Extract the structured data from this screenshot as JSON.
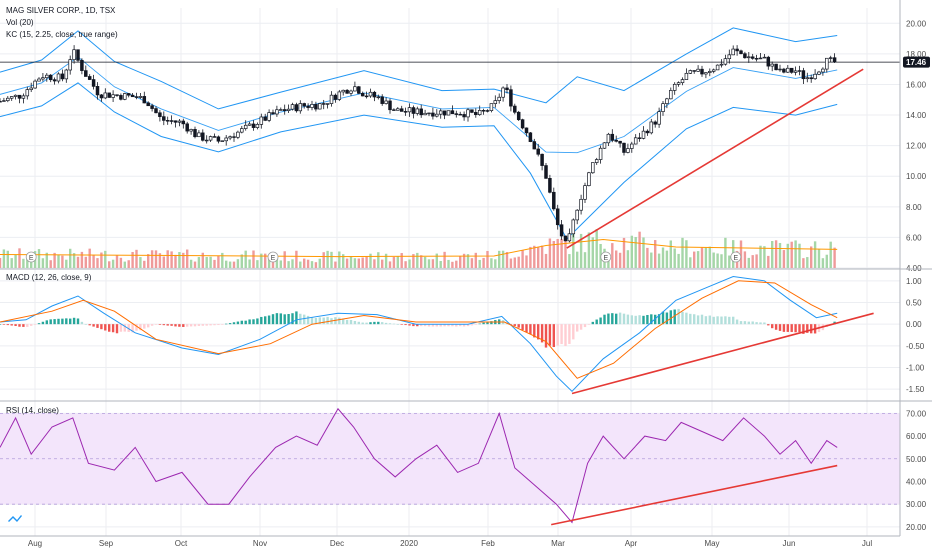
{
  "legend": {
    "symbol": "MAG SILVER CORP., 1D, TSX",
    "volume": "Vol (20)",
    "keltner": "KC (15, 2.25, close, true range)",
    "macd": "MACD (12, 26, close, 9)",
    "rsi": "RSI (14, close)"
  },
  "price_badge": "17.46",
  "earnings_marker": "E",
  "colors": {
    "up": "#26a69a",
    "down": "#ef5350",
    "candle": "#131722",
    "keltner": "#2196f3",
    "vol_up": "#a5d6a7",
    "vol_down": "#ef9a9a",
    "vol_ma": "#ff9800",
    "macd_line": "#2196f3",
    "signal_line": "#ff6d00",
    "rsi_line": "#9c27b0",
    "rsi_band": "#f3e5fb",
    "trend": "#e53935",
    "badge": "#131722"
  },
  "chart_data": [
    {
      "type": "candlestick",
      "title": "MAG SILVER CORP., 1D, TSX",
      "x_ticks": [
        "Aug",
        "Sep",
        "Oct",
        "Nov",
        "Dec",
        "2020",
        "Feb",
        "Mar",
        "Apr",
        "May",
        "Jun",
        "Jul"
      ],
      "y_ticks": [
        "20.00",
        "18.00",
        "16.00",
        "14.00",
        "12.00",
        "10.00",
        "8.00",
        "6.00",
        "4.00"
      ],
      "ylim": [
        4,
        21
      ],
      "last_price": 17.46,
      "close_series": [
        {
          "d": 0,
          "v": 14.9
        },
        {
          "d": 8,
          "v": 15.3
        },
        {
          "d": 16,
          "v": 16.6
        },
        {
          "d": 24,
          "v": 16.4
        },
        {
          "d": 28,
          "v": 18.2
        },
        {
          "d": 32,
          "v": 16.9
        },
        {
          "d": 38,
          "v": 15.4
        },
        {
          "d": 44,
          "v": 15.3
        },
        {
          "d": 52,
          "v": 15.2
        },
        {
          "d": 56,
          "v": 15.0
        },
        {
          "d": 62,
          "v": 13.7
        },
        {
          "d": 70,
          "v": 13.5
        },
        {
          "d": 76,
          "v": 12.6
        },
        {
          "d": 84,
          "v": 12.3
        },
        {
          "d": 92,
          "v": 12.9
        },
        {
          "d": 100,
          "v": 13.6
        },
        {
          "d": 108,
          "v": 14.3
        },
        {
          "d": 116,
          "v": 14.6
        },
        {
          "d": 124,
          "v": 14.7
        },
        {
          "d": 130,
          "v": 15.4
        },
        {
          "d": 136,
          "v": 15.9
        },
        {
          "d": 140,
          "v": 15.4
        },
        {
          "d": 146,
          "v": 15.1
        },
        {
          "d": 152,
          "v": 14.3
        },
        {
          "d": 160,
          "v": 14.2
        },
        {
          "d": 168,
          "v": 14.2
        },
        {
          "d": 176,
          "v": 14.2
        },
        {
          "d": 184,
          "v": 14.0
        },
        {
          "d": 190,
          "v": 14.6
        },
        {
          "d": 194,
          "v": 15.9
        },
        {
          "d": 198,
          "v": 14.2
        },
        {
          "d": 204,
          "v": 12.5
        },
        {
          "d": 210,
          "v": 10.0
        },
        {
          "d": 214,
          "v": 7.0
        },
        {
          "d": 218,
          "v": 5.3
        },
        {
          "d": 222,
          "v": 8.0
        },
        {
          "d": 228,
          "v": 10.8
        },
        {
          "d": 234,
          "v": 12.8
        },
        {
          "d": 240,
          "v": 11.6
        },
        {
          "d": 246,
          "v": 12.6
        },
        {
          "d": 252,
          "v": 13.6
        },
        {
          "d": 258,
          "v": 15.5
        },
        {
          "d": 264,
          "v": 16.6
        },
        {
          "d": 270,
          "v": 16.8
        },
        {
          "d": 276,
          "v": 17.2
        },
        {
          "d": 282,
          "v": 18.2
        },
        {
          "d": 288,
          "v": 17.8
        },
        {
          "d": 294,
          "v": 17.6
        },
        {
          "d": 300,
          "v": 16.8
        },
        {
          "d": 306,
          "v": 16.9
        },
        {
          "d": 310,
          "v": 16.4
        },
        {
          "d": 314,
          "v": 16.9
        },
        {
          "d": 318,
          "v": 17.5
        },
        {
          "d": 322,
          "v": 17.46
        }
      ],
      "keltner_upper": [
        {
          "d": 0,
          "v": 16.8
        },
        {
          "d": 16,
          "v": 17.6
        },
        {
          "d": 30,
          "v": 19.5
        },
        {
          "d": 44,
          "v": 17.5
        },
        {
          "d": 62,
          "v": 16.2
        },
        {
          "d": 84,
          "v": 14.4
        },
        {
          "d": 108,
          "v": 15.5
        },
        {
          "d": 140,
          "v": 16.9
        },
        {
          "d": 170,
          "v": 15.6
        },
        {
          "d": 190,
          "v": 15.7
        },
        {
          "d": 210,
          "v": 14.8
        },
        {
          "d": 222,
          "v": 16.5
        },
        {
          "d": 240,
          "v": 15.6
        },
        {
          "d": 264,
          "v": 18.0
        },
        {
          "d": 282,
          "v": 19.7
        },
        {
          "d": 306,
          "v": 18.8
        },
        {
          "d": 322,
          "v": 19.2
        }
      ],
      "keltner_lower": [
        {
          "d": 0,
          "v": 13.9
        },
        {
          "d": 16,
          "v": 14.6
        },
        {
          "d": 30,
          "v": 16.1
        },
        {
          "d": 44,
          "v": 14.2
        },
        {
          "d": 62,
          "v": 12.6
        },
        {
          "d": 84,
          "v": 11.6
        },
        {
          "d": 108,
          "v": 12.9
        },
        {
          "d": 140,
          "v": 14.0
        },
        {
          "d": 170,
          "v": 13.2
        },
        {
          "d": 190,
          "v": 13.3
        },
        {
          "d": 204,
          "v": 10.2
        },
        {
          "d": 218,
          "v": 5.9
        },
        {
          "d": 240,
          "v": 9.6
        },
        {
          "d": 264,
          "v": 13.1
        },
        {
          "d": 282,
          "v": 14.5
        },
        {
          "d": 306,
          "v": 14.0
        },
        {
          "d": 322,
          "v": 14.7
        }
      ],
      "trendline": {
        "from": {
          "d": 218,
          "v": 5.3
        },
        "to": {
          "d": 332,
          "v": 17.0
        }
      },
      "earnings_days": [
        12,
        105,
        233,
        283
      ]
    },
    {
      "type": "bar",
      "title": "Vol (20)",
      "volume_ma": [
        {
          "d": 0,
          "v": 0.45
        },
        {
          "d": 60,
          "v": 0.42
        },
        {
          "d": 130,
          "v": 0.38
        },
        {
          "d": 190,
          "v": 0.4
        },
        {
          "d": 210,
          "v": 0.75
        },
        {
          "d": 232,
          "v": 0.95
        },
        {
          "d": 260,
          "v": 0.7
        },
        {
          "d": 322,
          "v": 0.62
        }
      ]
    },
    {
      "type": "line",
      "title": "MACD (12, 26, close, 9)",
      "y_ticks": [
        "1.00",
        "0.50",
        "0.00",
        "-0.50",
        "-1.00",
        "-1.50"
      ],
      "ylim": [
        -1.75,
        1.25
      ],
      "macd_line": [
        {
          "d": 0,
          "v": 0.05
        },
        {
          "d": 10,
          "v": 0.1
        },
        {
          "d": 20,
          "v": 0.42
        },
        {
          "d": 30,
          "v": 0.65
        },
        {
          "d": 40,
          "v": 0.25
        },
        {
          "d": 52,
          "v": -0.2
        },
        {
          "d": 70,
          "v": -0.55
        },
        {
          "d": 84,
          "v": -0.7
        },
        {
          "d": 100,
          "v": -0.35
        },
        {
          "d": 114,
          "v": 0.1
        },
        {
          "d": 130,
          "v": 0.25
        },
        {
          "d": 145,
          "v": 0.22
        },
        {
          "d": 160,
          "v": 0.0
        },
        {
          "d": 180,
          "v": 0.0
        },
        {
          "d": 193,
          "v": 0.18
        },
        {
          "d": 204,
          "v": -0.45
        },
        {
          "d": 214,
          "v": -1.2
        },
        {
          "d": 220,
          "v": -1.55
        },
        {
          "d": 232,
          "v": -0.8
        },
        {
          "d": 246,
          "v": -0.2
        },
        {
          "d": 260,
          "v": 0.55
        },
        {
          "d": 272,
          "v": 0.85
        },
        {
          "d": 282,
          "v": 1.1
        },
        {
          "d": 294,
          "v": 1.0
        },
        {
          "d": 304,
          "v": 0.55
        },
        {
          "d": 314,
          "v": 0.15
        },
        {
          "d": 322,
          "v": 0.25
        }
      ],
      "signal_line": [
        {
          "d": 0,
          "v": 0.05
        },
        {
          "d": 20,
          "v": 0.3
        },
        {
          "d": 32,
          "v": 0.55
        },
        {
          "d": 44,
          "v": 0.3
        },
        {
          "d": 60,
          "v": -0.35
        },
        {
          "d": 84,
          "v": -0.68
        },
        {
          "d": 104,
          "v": -0.45
        },
        {
          "d": 120,
          "v": 0.0
        },
        {
          "d": 140,
          "v": 0.2
        },
        {
          "d": 160,
          "v": 0.05
        },
        {
          "d": 194,
          "v": 0.05
        },
        {
          "d": 210,
          "v": -0.4
        },
        {
          "d": 222,
          "v": -1.25
        },
        {
          "d": 236,
          "v": -0.9
        },
        {
          "d": 252,
          "v": -0.1
        },
        {
          "d": 270,
          "v": 0.6
        },
        {
          "d": 284,
          "v": 1.0
        },
        {
          "d": 298,
          "v": 0.95
        },
        {
          "d": 312,
          "v": 0.45
        },
        {
          "d": 322,
          "v": 0.15
        }
      ],
      "trendline": {
        "from": {
          "d": 220,
          "v": -1.6
        },
        "to": {
          "d": 336,
          "v": 0.25
        }
      }
    },
    {
      "type": "line",
      "title": "RSI (14, close)",
      "y_ticks": [
        "70.00",
        "60.00",
        "50.00",
        "40.00",
        "30.00",
        "20.00"
      ],
      "ylim": [
        16,
        75
      ],
      "band": [
        30,
        70
      ],
      "rsi_line": [
        {
          "d": 0,
          "v": 55
        },
        {
          "d": 6,
          "v": 68
        },
        {
          "d": 12,
          "v": 52
        },
        {
          "d": 20,
          "v": 64
        },
        {
          "d": 28,
          "v": 68
        },
        {
          "d": 34,
          "v": 48
        },
        {
          "d": 44,
          "v": 45
        },
        {
          "d": 52,
          "v": 55
        },
        {
          "d": 60,
          "v": 40
        },
        {
          "d": 70,
          "v": 44
        },
        {
          "d": 80,
          "v": 30
        },
        {
          "d": 88,
          "v": 30
        },
        {
          "d": 96,
          "v": 42
        },
        {
          "d": 106,
          "v": 55
        },
        {
          "d": 114,
          "v": 60
        },
        {
          "d": 122,
          "v": 56
        },
        {
          "d": 130,
          "v": 72
        },
        {
          "d": 136,
          "v": 64
        },
        {
          "d": 144,
          "v": 50
        },
        {
          "d": 152,
          "v": 42
        },
        {
          "d": 160,
          "v": 50
        },
        {
          "d": 168,
          "v": 56
        },
        {
          "d": 176,
          "v": 44
        },
        {
          "d": 184,
          "v": 48
        },
        {
          "d": 192,
          "v": 70
        },
        {
          "d": 198,
          "v": 46
        },
        {
          "d": 206,
          "v": 38
        },
        {
          "d": 214,
          "v": 30
        },
        {
          "d": 220,
          "v": 22
        },
        {
          "d": 226,
          "v": 48
        },
        {
          "d": 232,
          "v": 60
        },
        {
          "d": 240,
          "v": 50
        },
        {
          "d": 248,
          "v": 60
        },
        {
          "d": 256,
          "v": 58
        },
        {
          "d": 262,
          "v": 66
        },
        {
          "d": 270,
          "v": 62
        },
        {
          "d": 278,
          "v": 58
        },
        {
          "d": 286,
          "v": 68
        },
        {
          "d": 294,
          "v": 60
        },
        {
          "d": 300,
          "v": 52
        },
        {
          "d": 306,
          "v": 58
        },
        {
          "d": 312,
          "v": 48
        },
        {
          "d": 318,
          "v": 58
        },
        {
          "d": 322,
          "v": 55
        }
      ],
      "trendline": {
        "from": {
          "d": 212,
          "v": 21
        },
        "to": {
          "d": 322,
          "v": 47
        }
      }
    }
  ]
}
